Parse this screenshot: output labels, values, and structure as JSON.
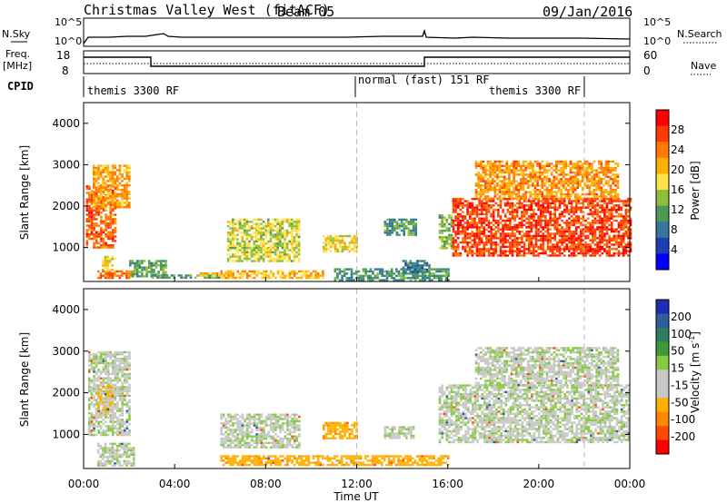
{
  "header": {
    "title": "Christmas Valley West (fitACF)",
    "beam": "Beam 05",
    "date": "09/Jan/2016"
  },
  "colors": {
    "power_scale": [
      "#0000ff",
      "#1c3fb4",
      "#33779a",
      "#4a9a55",
      "#8fbf3a",
      "#ffe24a",
      "#ffb000",
      "#ff7a00",
      "#ff3a00",
      "#ff0000"
    ],
    "velocity_scale": [
      "#1c2fb4",
      "#2c5ea0",
      "#2e7d62",
      "#3c9a3a",
      "#88c944",
      "#c8c8c8",
      "#c8c8c8",
      "#ffb000",
      "#ff8800",
      "#ff4a00",
      "#ff0000"
    ],
    "gate_line": "#bbbbbb"
  },
  "top_panels": {
    "nsky_label": "N.Sky",
    "nsearch_label": "N.Search",
    "freq_label_1": "Freq.",
    "freq_label_2": "[MHz]",
    "nave_label": "Nave",
    "cpid_label": "CPID",
    "left_ticks_noise": [
      "10^5",
      "10^0"
    ],
    "right_ticks_noise": [
      "10^5",
      "10^0"
    ],
    "left_ticks_freq": [
      "18",
      "8"
    ],
    "right_ticks_nave": [
      "60",
      "0"
    ]
  },
  "cpid_segments": [
    {
      "label": "themis 3300 RF"
    },
    {
      "label": "normal (fast) 151 RF"
    },
    {
      "label": "themis 3300 RF"
    }
  ],
  "axes": {
    "ylabel": "Slant Range [km]",
    "xlabel": "Time UT",
    "y_ticks": [
      "4000",
      "3000",
      "2000",
      "1000"
    ],
    "x_ticks": [
      "00:00",
      "04:00",
      "08:00",
      "12:00",
      "16:00",
      "20:00",
      "00:00"
    ]
  },
  "power_colorbar": {
    "title": "Power [dB]",
    "ticks": [
      "28",
      "24",
      "20",
      "16",
      "12",
      "8",
      "4"
    ]
  },
  "velocity_colorbar": {
    "title_main": "Velocity [m s",
    "title_sup": "-1",
    "title_end": "]",
    "ticks": [
      "200",
      "100",
      "50",
      "15",
      "-15",
      "-50",
      "-100",
      "-200"
    ]
  },
  "chart_data": [
    {
      "type": "heatmap",
      "panel": "power",
      "x_unit": "hours UT",
      "xlim": [
        0,
        24
      ],
      "ylim": [
        180,
        4500
      ],
      "color_range": [
        0,
        30
      ],
      "regions": [
        {
          "t0": 0.1,
          "t1": 1.4,
          "r0": 1000,
          "r1": 2500,
          "value": 25
        },
        {
          "t0": 0.4,
          "t1": 2.0,
          "r0": 2000,
          "r1": 3000,
          "value": 21
        },
        {
          "t0": 0.6,
          "t1": 2.2,
          "r0": 250,
          "r1": 450,
          "value": 24
        },
        {
          "t0": 0.8,
          "t1": 1.4,
          "r0": 450,
          "r1": 800,
          "value": 17
        },
        {
          "t0": 2.0,
          "t1": 3.6,
          "r0": 300,
          "r1": 700,
          "value": 11
        },
        {
          "t0": 3.0,
          "t1": 6.0,
          "r0": 250,
          "r1": 350,
          "value": 9
        },
        {
          "t0": 5.0,
          "t1": 6.2,
          "r0": 300,
          "r1": 400,
          "value": 18
        },
        {
          "t0": 6.3,
          "t1": 9.5,
          "r0": 700,
          "r1": 1700,
          "value": 15
        },
        {
          "t0": 6.0,
          "t1": 10.5,
          "r0": 250,
          "r1": 450,
          "value": 20
        },
        {
          "t0": 10.5,
          "t1": 12.0,
          "r0": 900,
          "r1": 1300,
          "value": 17
        },
        {
          "t0": 11.0,
          "t1": 16.0,
          "r0": 200,
          "r1": 500,
          "value": 9
        },
        {
          "t0": 13.2,
          "t1": 14.6,
          "r0": 1300,
          "r1": 1700,
          "value": 9
        },
        {
          "t0": 14.0,
          "t1": 15.2,
          "r0": 400,
          "r1": 700,
          "value": 8
        },
        {
          "t0": 15.6,
          "t1": 16.2,
          "r0": 1000,
          "r1": 1800,
          "value": 12
        },
        {
          "t0": 16.2,
          "t1": 24.0,
          "r0": 800,
          "r1": 2200,
          "value": 27
        },
        {
          "t0": 17.2,
          "t1": 23.5,
          "r0": 2200,
          "r1": 3100,
          "value": 22
        }
      ]
    },
    {
      "type": "heatmap",
      "panel": "velocity",
      "x_unit": "hours UT",
      "xlim": [
        0,
        24
      ],
      "ylim": [
        180,
        4500
      ],
      "color_range": [
        -200,
        200
      ],
      "regions": [
        {
          "t0": 0.2,
          "t1": 2.0,
          "r0": 1000,
          "r1": 3000,
          "value": 0
        },
        {
          "t0": 0.6,
          "t1": 1.3,
          "r0": 1500,
          "r1": 2200,
          "value": -40
        },
        {
          "t0": 0.6,
          "t1": 2.2,
          "r0": 250,
          "r1": 800,
          "value": 0
        },
        {
          "t0": 6.0,
          "t1": 9.5,
          "r0": 700,
          "r1": 1500,
          "value": 0
        },
        {
          "t0": 6.0,
          "t1": 16.0,
          "r0": 250,
          "r1": 500,
          "value": -60
        },
        {
          "t0": 10.5,
          "t1": 12.0,
          "r0": 900,
          "r1": 1300,
          "value": -60
        },
        {
          "t0": 13.2,
          "t1": 14.5,
          "r0": 900,
          "r1": 1200,
          "value": 0
        },
        {
          "t0": 15.6,
          "t1": 24.0,
          "r0": 800,
          "r1": 2200,
          "value": 0
        },
        {
          "t0": 17.2,
          "t1": 23.5,
          "r0": 2200,
          "r1": 3100,
          "value": 0
        }
      ]
    }
  ]
}
